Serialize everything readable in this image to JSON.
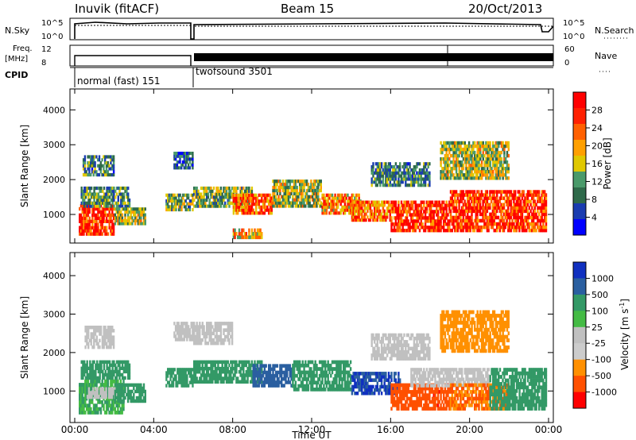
{
  "header": {
    "title": "Inuvik (fitACF)",
    "beam": "Beam 15",
    "date": "20/Oct/2013"
  },
  "side_labels": {
    "nsky": "N.Sky",
    "nsearch": "N.Search",
    "freq_line1": "Freq.",
    "freq_line2": "[MHz]",
    "nave": "Nave",
    "cpid": "CPID"
  },
  "top_ticks": {
    "noise_hi": "10^5",
    "noise_lo": "10^0",
    "noise_r_hi": "10^5",
    "noise_r_lo": "10^0",
    "freq_hi": "12",
    "freq_lo": "8",
    "nave_hi": "60",
    "nave_lo": "0"
  },
  "cpid_modes": [
    {
      "label": "normal (fast) 151",
      "start_h": 0.0,
      "end_h": 6.0
    },
    {
      "label": "twofsound 3501",
      "start_h": 6.0,
      "end_h": 24.0
    }
  ],
  "colors": {
    "power": [
      "#0000ff",
      "#1a3cb0",
      "#2f6a4a",
      "#4a9a6a",
      "#e0c800",
      "#ffa000",
      "#ff6000",
      "#ff2000",
      "#ff0000"
    ],
    "velocity": [
      "#ff0000",
      "#ff5000",
      "#ff9000",
      "#cccccc",
      "#c0c0c0",
      "#44bb44",
      "#339966",
      "#2a5fa0",
      "#1030c0"
    ]
  },
  "chart_data": [
    {
      "type": "heatmap",
      "name": "power",
      "ylabel": "Slant Range [km]",
      "xlabel": "Time UT",
      "x_ticks": [
        "00:00",
        "04:00",
        "08:00",
        "12:00",
        "16:00",
        "20:00",
        "00:00"
      ],
      "x_range_hours": [
        0,
        24
      ],
      "y_ticks": [
        1000,
        2000,
        3000,
        4000
      ],
      "ylim": [
        180,
        4600
      ],
      "colorbar_label": "Power [dB]",
      "colorbar_ticks": [
        "4",
        "8",
        "12",
        "16",
        "20",
        "24",
        "28"
      ],
      "colorbar_range": [
        0,
        30
      ],
      "regions": [
        {
          "t0": 0.2,
          "t1": 2.0,
          "r0": 400,
          "r1": 1300,
          "v": 26
        },
        {
          "t0": 0.3,
          "t1": 2.8,
          "r0": 1200,
          "r1": 1800,
          "v": 10
        },
        {
          "t0": 2.0,
          "t1": 3.6,
          "r0": 700,
          "r1": 1200,
          "v": 14
        },
        {
          "t0": 0.4,
          "t1": 2.0,
          "r0": 2100,
          "r1": 2700,
          "v": 9
        },
        {
          "t0": 4.6,
          "t1": 6.0,
          "r0": 1100,
          "r1": 1600,
          "v": 12
        },
        {
          "t0": 5.0,
          "t1": 6.0,
          "r0": 2300,
          "r1": 2800,
          "v": 7
        },
        {
          "t0": 6.0,
          "t1": 9.0,
          "r0": 1200,
          "r1": 1800,
          "v": 12
        },
        {
          "t0": 8.0,
          "t1": 10.0,
          "r0": 1000,
          "r1": 1600,
          "v": 22
        },
        {
          "t0": 10.0,
          "t1": 12.5,
          "r0": 1200,
          "r1": 2000,
          "v": 14
        },
        {
          "t0": 12.5,
          "t1": 14.5,
          "r0": 1000,
          "r1": 1600,
          "v": 20
        },
        {
          "t0": 14.0,
          "t1": 16.0,
          "r0": 800,
          "r1": 1400,
          "v": 22
        },
        {
          "t0": 16.0,
          "t1": 19.0,
          "r0": 500,
          "r1": 1400,
          "v": 26
        },
        {
          "t0": 19.0,
          "t1": 23.9,
          "r0": 500,
          "r1": 1700,
          "v": 26
        },
        {
          "t0": 15.0,
          "t1": 18.0,
          "r0": 1800,
          "r1": 2500,
          "v": 9
        },
        {
          "t0": 18.5,
          "t1": 22.0,
          "r0": 2000,
          "r1": 3100,
          "v": 14
        },
        {
          "t0": 8.0,
          "t1": 9.5,
          "r0": 300,
          "r1": 600,
          "v": 18
        }
      ]
    },
    {
      "type": "heatmap",
      "name": "velocity",
      "ylabel": "Slant Range [km]",
      "xlabel": "Time UT",
      "x_ticks": [
        "00:00",
        "04:00",
        "08:00",
        "12:00",
        "16:00",
        "20:00",
        "00:00"
      ],
      "x_range_hours": [
        0,
        24
      ],
      "y_ticks": [
        1000,
        2000,
        3000,
        4000
      ],
      "ylim": [
        180,
        4600
      ],
      "colorbar_label": "Velocity [m s^-1]",
      "colorbar_ticks": [
        "1000",
        "500",
        "100",
        "25",
        "-25",
        "-100",
        "-500",
        "-1000"
      ],
      "regions": [
        {
          "t0": 0.2,
          "t1": 2.5,
          "r0": 400,
          "r1": 1300,
          "v": 60
        },
        {
          "t0": 0.6,
          "t1": 2.2,
          "r0": 800,
          "r1": 1100,
          "v": 0
        },
        {
          "t0": 0.3,
          "t1": 2.8,
          "r0": 1300,
          "r1": 1800,
          "v": 200
        },
        {
          "t0": 0.5,
          "t1": 2.0,
          "r0": 2100,
          "r1": 2700,
          "v": 0
        },
        {
          "t0": 2.0,
          "t1": 3.6,
          "r0": 700,
          "r1": 1200,
          "v": 200
        },
        {
          "t0": 4.6,
          "t1": 6.0,
          "r0": 1100,
          "r1": 1600,
          "v": 200
        },
        {
          "t0": 5.0,
          "t1": 6.0,
          "r0": 2300,
          "r1": 2800,
          "v": 0
        },
        {
          "t0": 6.0,
          "t1": 8.0,
          "r0": 2200,
          "r1": 2800,
          "v": 0
        },
        {
          "t0": 6.0,
          "t1": 9.5,
          "r0": 1200,
          "r1": 1800,
          "v": 200
        },
        {
          "t0": 9.0,
          "t1": 11.0,
          "r0": 1100,
          "r1": 1700,
          "v": 600
        },
        {
          "t0": 11.0,
          "t1": 14.0,
          "r0": 1000,
          "r1": 1800,
          "v": 200
        },
        {
          "t0": 14.0,
          "t1": 16.5,
          "r0": 900,
          "r1": 1500,
          "v": 800
        },
        {
          "t0": 16.0,
          "t1": 19.0,
          "r0": 500,
          "r1": 1200,
          "v": -500
        },
        {
          "t0": 17.0,
          "t1": 21.0,
          "r0": 1100,
          "r1": 1600,
          "v": 0
        },
        {
          "t0": 19.0,
          "t1": 22.0,
          "r0": 500,
          "r1": 1200,
          "v": -300
        },
        {
          "t0": 21.0,
          "t1": 23.9,
          "r0": 500,
          "r1": 1600,
          "v": 100
        },
        {
          "t0": 15.0,
          "t1": 18.0,
          "r0": 1800,
          "r1": 2500,
          "v": 0
        },
        {
          "t0": 18.5,
          "t1": 22.0,
          "r0": 2000,
          "r1": 3100,
          "v": -100
        }
      ]
    }
  ]
}
